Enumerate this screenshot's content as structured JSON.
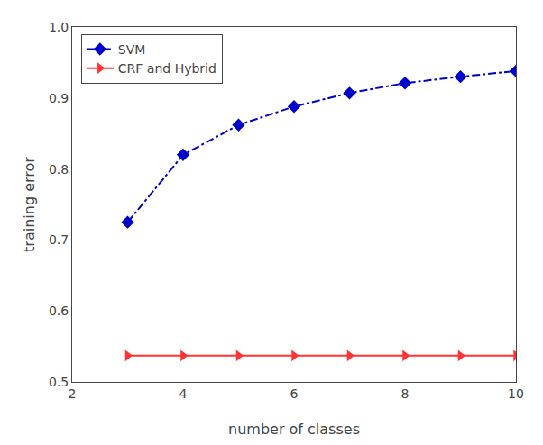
{
  "chart_data": {
    "type": "line",
    "x": [
      3,
      4,
      5,
      6,
      7,
      8,
      9,
      10
    ],
    "series": [
      {
        "name": "SVM",
        "color": "#0000cc",
        "marker": "diamond",
        "line_style": "dashdot",
        "values": [
          0.725,
          0.82,
          0.862,
          0.888,
          0.907,
          0.921,
          0.93,
          0.938
        ]
      },
      {
        "name": "CRF and Hybrid",
        "color": "#ff3333",
        "marker": "triangle-right",
        "line_style": "solid",
        "values": [
          0.537,
          0.537,
          0.537,
          0.537,
          0.537,
          0.537,
          0.537,
          0.537
        ]
      }
    ],
    "x_label": "number of classes",
    "y_label": "training error",
    "xlim": [
      2,
      10
    ],
    "ylim": [
      0.5,
      1.0
    ],
    "xticks": [
      2,
      4,
      6,
      8,
      10
    ],
    "yticks": [
      0.5,
      0.6,
      0.7,
      0.8,
      0.9,
      {
        "value": 1.0,
        "label": "1.0"
      }
    ],
    "grid": false,
    "legend": "upper left"
  }
}
